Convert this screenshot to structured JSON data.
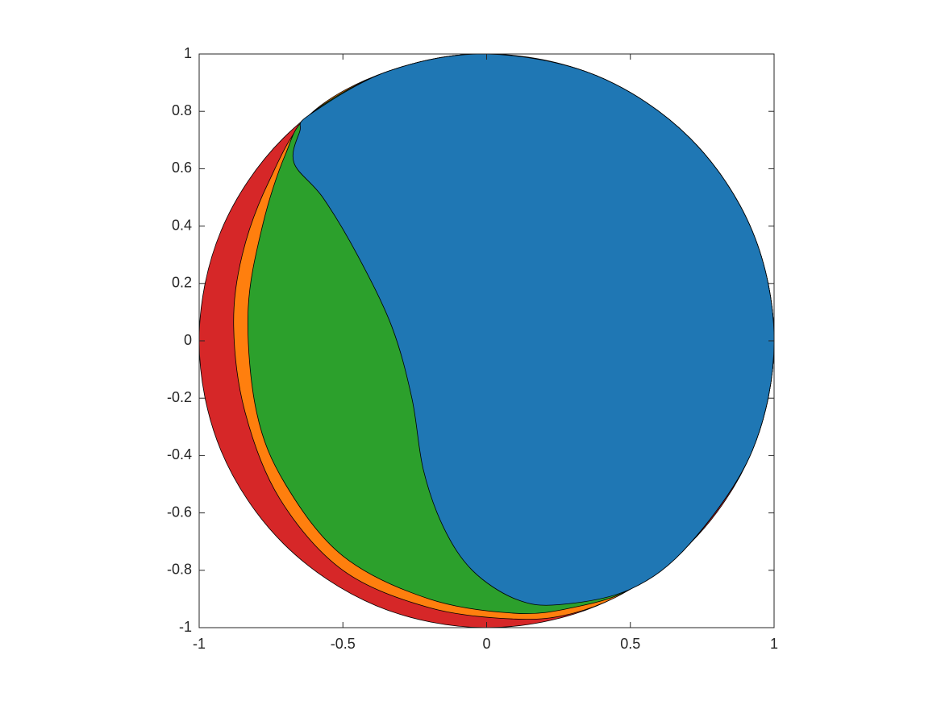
{
  "chart_data": {
    "type": "filled-regions",
    "xlim": [
      -1,
      1
    ],
    "ylim": [
      -1,
      1
    ],
    "xticks": [
      -1,
      -0.5,
      0,
      0.5,
      1
    ],
    "yticks": [
      -1,
      -0.8,
      -0.6,
      -0.4,
      -0.2,
      0,
      0.2,
      0.4,
      0.6,
      0.8,
      1
    ],
    "series": [
      {
        "color": "#d62728",
        "x": [
          1,
          0.924,
          0.707,
          0.383,
          0,
          -0.383,
          -0.707,
          -0.924,
          -1,
          -0.924,
          -0.707,
          -0.383,
          0,
          0.383,
          0.707,
          0.924
        ],
        "y": [
          0,
          0.383,
          0.707,
          0.924,
          1,
          0.924,
          0.707,
          0.383,
          0,
          -0.383,
          -0.707,
          -0.924,
          -1,
          -0.924,
          -0.707,
          -0.383
        ]
      },
      {
        "color": "#ff7f0e",
        "x": [
          -0.616,
          -0.342,
          0,
          0.383,
          0.707,
          0.924,
          1,
          0.924,
          0.707,
          0.5,
          0.3,
          0.1,
          -0.2,
          -0.5,
          -0.72,
          -0.84,
          -0.88,
          -0.85,
          -0.76
        ],
        "y": [
          0.788,
          0.94,
          1,
          0.924,
          0.707,
          0.383,
          0,
          -0.383,
          -0.707,
          -0.866,
          -0.95,
          -0.97,
          -0.93,
          -0.8,
          -0.55,
          -0.25,
          0.05,
          0.3,
          0.55
        ]
      },
      {
        "color": "#2ca02c",
        "x": [
          -0.616,
          -0.342,
          0,
          0.383,
          0.707,
          0.924,
          1,
          0.924,
          0.707,
          0.5,
          0.3,
          0.1,
          -0.2,
          -0.5,
          -0.7,
          -0.8,
          -0.83,
          -0.78,
          -0.7
        ],
        "y": [
          0.788,
          0.94,
          1,
          0.924,
          0.707,
          0.383,
          0,
          -0.383,
          -0.707,
          -0.866,
          -0.93,
          -0.95,
          -0.9,
          -0.75,
          -0.5,
          -0.25,
          0.1,
          0.4,
          0.65
        ]
      },
      {
        "color": "#1f77b4",
        "x": [
          -0.616,
          -0.342,
          0,
          0.383,
          0.707,
          0.924,
          1,
          0.924,
          0.707,
          0.5,
          0.25,
          0.1,
          -0.05,
          -0.15,
          -0.22,
          -0.26,
          -0.33,
          -0.45,
          -0.57,
          -0.67,
          -0.65
        ],
        "y": [
          0.788,
          0.94,
          1,
          0.924,
          0.707,
          0.383,
          0,
          -0.383,
          -0.707,
          -0.866,
          -0.92,
          -0.9,
          -0.8,
          -0.65,
          -0.45,
          -0.2,
          0.05,
          0.3,
          0.5,
          0.62,
          0.73
        ]
      }
    ]
  }
}
